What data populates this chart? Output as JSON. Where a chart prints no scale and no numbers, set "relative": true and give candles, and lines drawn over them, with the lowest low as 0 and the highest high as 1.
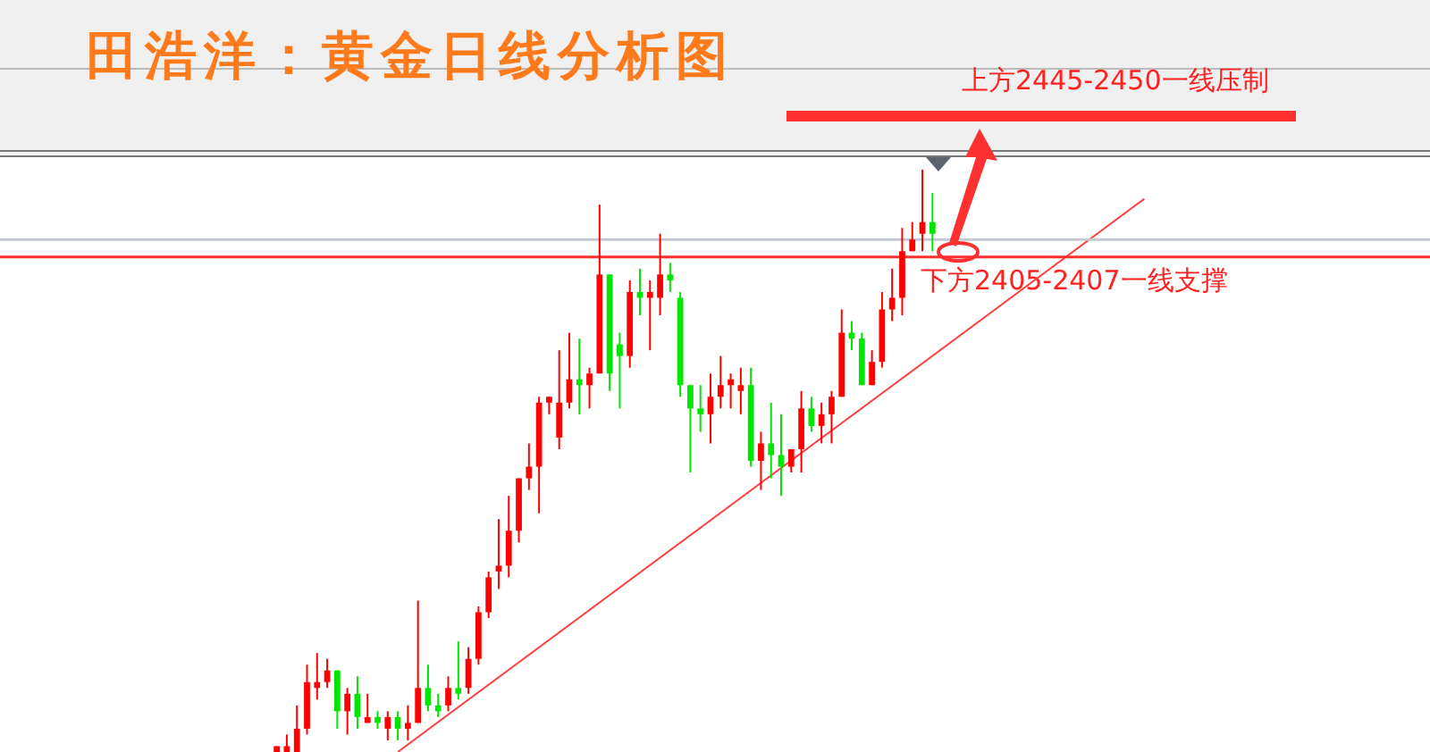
{
  "chart_data": {
    "type": "candlestick",
    "title": "田浩洋：黄金日线分析图",
    "relative": true,
    "tick_labels": false,
    "annotations": [
      "上方2445-2450一线压制",
      "下方2405-2407一线支撑"
    ],
    "categories": [
      null,
      null,
      null,
      null,
      null,
      null,
      null,
      null,
      null,
      null,
      null,
      null,
      null,
      null,
      null,
      null,
      null,
      null,
      null,
      null,
      null,
      null,
      null,
      null,
      null,
      null,
      null,
      null,
      null,
      null,
      null,
      null,
      null,
      null,
      null,
      null,
      null,
      null,
      null,
      null,
      null,
      null,
      null,
      null,
      null,
      null,
      null,
      null,
      null,
      null,
      null,
      null,
      null,
      null,
      null,
      null,
      null,
      null,
      null,
      null,
      null,
      null,
      null,
      null,
      null,
      null,
      null,
      null,
      null,
      null,
      null,
      null,
      null,
      null,
      null,
      null,
      null,
      null,
      null,
      null,
      null,
      null,
      null,
      null,
      null,
      null,
      null
    ],
    "ohlc": [
      [
        0,
        0.01,
        0,
        0.01
      ],
      [
        0,
        0.03,
        0,
        0.01
      ],
      [
        0,
        0.08,
        0,
        0.04
      ],
      [
        0.04,
        0.15,
        0.03,
        0.12
      ],
      [
        0.11,
        0.17,
        0.09,
        0.12
      ],
      [
        0.12,
        0.16,
        0.11,
        0.14
      ],
      [
        0.14,
        0.14,
        0.04,
        0.07
      ],
      [
        0.07,
        0.11,
        0.03,
        0.1
      ],
      [
        0.1,
        0.13,
        0.04,
        0.06
      ],
      [
        0.05,
        0.1,
        0.05,
        0.06
      ],
      [
        0.06,
        0.07,
        0.04,
        0.05
      ],
      [
        0.04,
        0.07,
        0.02,
        0.06
      ],
      [
        0.06,
        0.07,
        0.02,
        0.04
      ],
      [
        0.04,
        0.08,
        0.02,
        0.05
      ],
      [
        0.05,
        0.26,
        0.05,
        0.11
      ],
      [
        0.11,
        0.15,
        0.07,
        0.08
      ],
      [
        0.08,
        0.1,
        0.06,
        0.07
      ],
      [
        0.08,
        0.13,
        0.07,
        0.11
      ],
      [
        0.11,
        0.19,
        0.09,
        0.1
      ],
      [
        0.11,
        0.18,
        0.1,
        0.16
      ],
      [
        0.16,
        0.25,
        0.15,
        0.24
      ],
      [
        0.24,
        0.31,
        0.23,
        0.3
      ],
      [
        0.31,
        0.4,
        0.28,
        0.32
      ],
      [
        0.32,
        0.44,
        0.3,
        0.38
      ],
      [
        0.38,
        0.47,
        0.36,
        0.47
      ],
      [
        0.47,
        0.53,
        0.45,
        0.49
      ],
      [
        0.49,
        0.61,
        0.41,
        0.6
      ],
      [
        0.6,
        0.61,
        0.58,
        0.61
      ],
      [
        0.54,
        0.69,
        0.52,
        0.6
      ],
      [
        0.6,
        0.72,
        0.59,
        0.64
      ],
      [
        0.64,
        0.71,
        0.58,
        0.63
      ],
      [
        0.63,
        0.66,
        0.59,
        0.65
      ],
      [
        0.65,
        0.94,
        0.65,
        0.82
      ],
      [
        0.82,
        0.82,
        0.62,
        0.65
      ],
      [
        0.7,
        0.72,
        0.59,
        0.68
      ],
      [
        0.68,
        0.81,
        0.66,
        0.79
      ],
      [
        0.79,
        0.83,
        0.75,
        0.78
      ],
      [
        0.78,
        0.81,
        0.69,
        0.79
      ],
      [
        0.78,
        0.89,
        0.75,
        0.82
      ],
      [
        0.82,
        0.84,
        0.79,
        0.81
      ],
      [
        0.78,
        0.79,
        0.61,
        0.63
      ],
      [
        0.63,
        0.63,
        0.48,
        0.59
      ],
      [
        0.59,
        0.63,
        0.55,
        0.58
      ],
      [
        0.58,
        0.65,
        0.53,
        0.61
      ],
      [
        0.61,
        0.68,
        0.59,
        0.63
      ],
      [
        0.63,
        0.65,
        0.59,
        0.64
      ],
      [
        0.62,
        0.66,
        0.58,
        0.63
      ],
      [
        0.63,
        0.66,
        0.49,
        0.5
      ],
      [
        0.5,
        0.55,
        0.45,
        0.53
      ],
      [
        0.53,
        0.6,
        0.47,
        0.51
      ],
      [
        0.51,
        0.58,
        0.44,
        0.49
      ],
      [
        0.49,
        0.52,
        0.48,
        0.52
      ],
      [
        0.52,
        0.62,
        0.48,
        0.59
      ],
      [
        0.59,
        0.61,
        0.55,
        0.56
      ],
      [
        0.56,
        0.6,
        0.53,
        0.58
      ],
      [
        0.58,
        0.62,
        0.53,
        0.61
      ],
      [
        0.61,
        0.76,
        0.61,
        0.72
      ],
      [
        0.72,
        0.74,
        0.69,
        0.71
      ],
      [
        0.71,
        0.72,
        0.63,
        0.63
      ],
      [
        0.63,
        0.69,
        0.63,
        0.67
      ],
      [
        0.67,
        0.79,
        0.66,
        0.76
      ],
      [
        0.76,
        0.83,
        0.74,
        0.78
      ],
      [
        0.78,
        0.9,
        0.75,
        0.86
      ],
      [
        0.86,
        0.91,
        0.86,
        0.88
      ],
      [
        0.89,
        1,
        0.86,
        0.91
      ],
      [
        0.91,
        0.96,
        0.86,
        0.89
      ],
      null,
      null,
      null,
      null,
      null,
      null,
      null,
      null,
      null,
      null,
      null,
      null,
      null,
      null,
      null,
      null,
      null,
      null,
      null,
      null,
      null
    ],
    "colors": [
      "#ff0000",
      "#ff0000",
      "#ff0000",
      "#ff0000",
      "#ff0000",
      "#ff0000",
      "#00e600",
      "#ff0000",
      "#00e600",
      "#ff0000",
      "#00e600",
      "#ff0000",
      "#00e600",
      "#ff0000",
      "#ff0000",
      "#00e600",
      "#00e600",
      "#ff0000",
      "#00e600",
      "#ff0000",
      "#ff0000",
      "#ff0000",
      "#ff0000",
      "#ff0000",
      "#ff0000",
      "#ff0000",
      "#ff0000",
      "#ff0000",
      "#ff0000",
      "#ff0000",
      "#00e600",
      "#ff0000",
      "#ff0000",
      "#00e600",
      "#00e600",
      "#ff0000",
      "#00e600",
      "#ff0000",
      "#ff0000",
      "#00e600",
      "#00e600",
      "#00e600",
      "#00e600",
      "#ff0000",
      "#ff0000",
      "#ff0000",
      "#ff0000",
      "#00e600",
      "#ff0000",
      "#00e600",
      "#00e600",
      "#ff0000",
      "#ff0000",
      "#00e600",
      "#ff0000",
      "#ff0000",
      "#ff0000",
      "#00e600",
      "#00e600",
      "#ff0000",
      "#ff0000",
      "#ff0000",
      "#ff0000",
      "#ff0000",
      "#ff0000",
      "#00e600",
      null,
      null,
      null,
      null,
      null,
      null,
      null,
      null,
      null,
      null,
      null,
      null,
      null,
      null,
      null,
      null,
      null,
      null,
      null,
      null,
      null
    ],
    "series": [
      {
        "type": "line",
        "color": "#ff4040",
        "values": [
          null,
          null,
          null,
          null,
          null,
          null,
          null,
          null,
          null,
          null,
          null,
          null,
          0,
          null,
          null,
          null,
          null,
          null,
          null,
          null,
          null,
          null,
          null,
          null,
          null,
          null,
          null,
          null,
          null,
          null,
          null,
          null,
          null,
          null,
          null,
          null,
          null,
          null,
          null,
          null,
          null,
          null,
          null,
          null,
          null,
          null,
          null,
          null,
          null,
          null,
          null,
          null,
          null,
          null,
          null,
          null,
          null,
          null,
          null,
          null,
          null,
          null,
          null,
          null,
          null,
          null,
          null,
          null,
          null,
          null,
          null,
          null,
          null,
          null,
          null,
          null,
          null,
          null,
          null,
          null,
          null,
          null,
          null,
          null,
          null,
          null,
          0.95
        ]
      }
    ],
    "ref_lines": [
      {
        "axis": "y",
        "value": 0.88,
        "color": "#c4c8d0"
      },
      {
        "axis": "y",
        "value": 0.85,
        "color": "#ff3030"
      }
    ]
  }
}
